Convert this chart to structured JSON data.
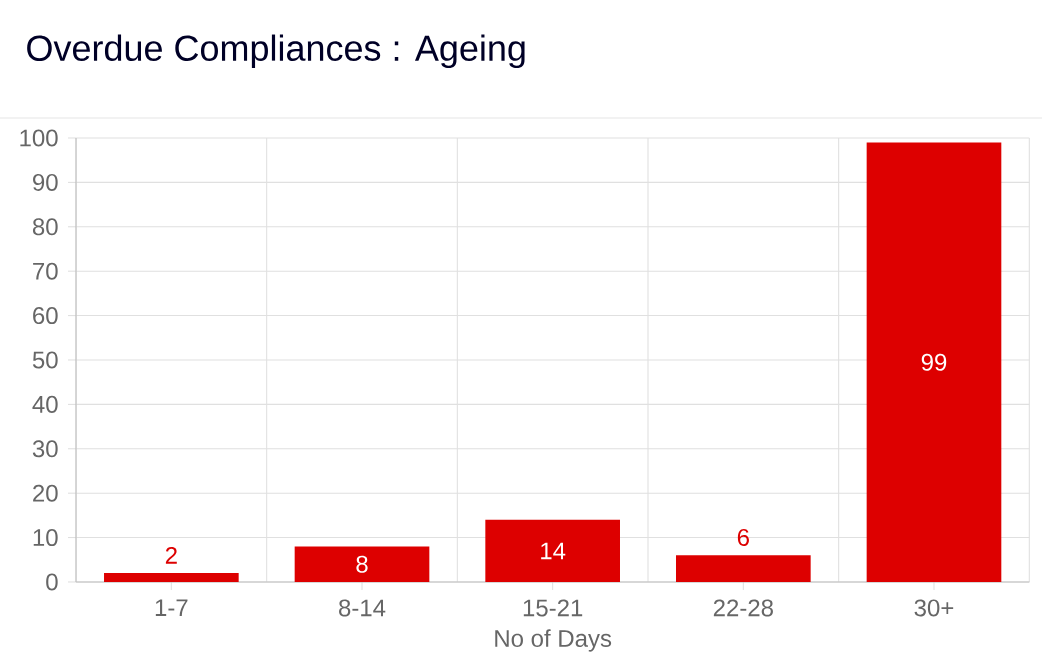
{
  "chart_data": {
    "type": "bar",
    "title": "Overdue Compliances : Ageing",
    "xlabel": "No of Days",
    "categories": [
      "1-7",
      "8-14",
      "15-21",
      "22-28",
      "30+"
    ],
    "values": [
      2,
      8,
      14,
      6,
      99
    ],
    "color": "#dd0000",
    "ylim": [
      0,
      100
    ],
    "yticks": [
      0,
      10,
      20,
      30,
      40,
      50,
      60,
      70,
      80,
      90,
      100
    ],
    "grid": true,
    "data_labels": true
  }
}
